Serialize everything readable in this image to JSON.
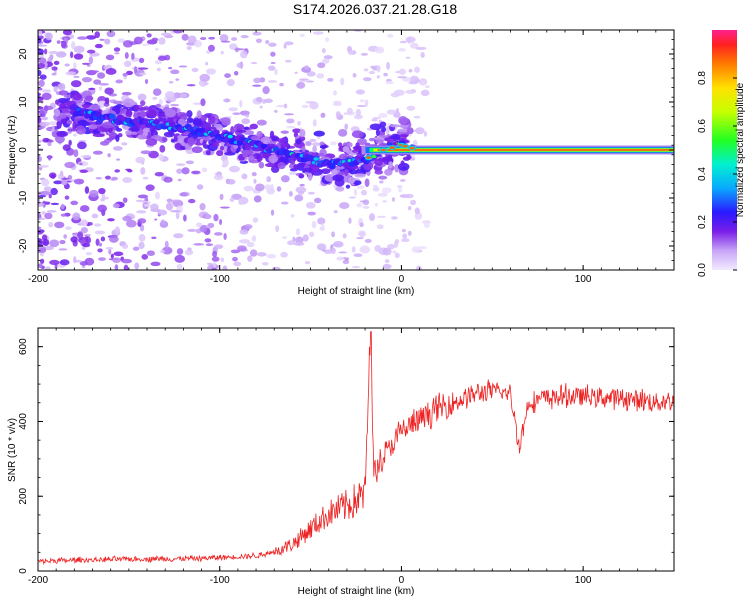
{
  "title": "S174.2026.037.21.28.G18",
  "colors": {
    "snr_line": "#ee2222",
    "axis": "#000000",
    "background": "#ffffff"
  },
  "chart_data": [
    {
      "type": "heatmap",
      "title": "S174.2026.037.21.28.G18",
      "xlabel": "Height of straight line (km)",
      "ylabel": "Frequency (Hz)",
      "xlim": [
        -200,
        150
      ],
      "ylim": [
        -25,
        25
      ],
      "xticks": [
        -200,
        -100,
        0,
        100
      ],
      "xtick_labels": [
        "-200",
        "-100",
        "0",
        "100"
      ],
      "yticks": [
        -20,
        -10,
        0,
        10,
        20
      ],
      "ytick_labels": [
        "-20",
        "-10",
        "0",
        "10",
        "20"
      ],
      "ridge": {
        "description": "main spectral ridge frequency vs height",
        "x": [
          -180,
          -160,
          -140,
          -120,
          -100,
          -80,
          -60,
          -40,
          -20,
          -10,
          0,
          10,
          50,
          100,
          150
        ],
        "y": [
          8,
          6.5,
          5.5,
          4.5,
          3,
          1,
          -1,
          -3,
          -2,
          0,
          1,
          0,
          0,
          0,
          0
        ],
        "peak_amplitude": [
          0.3,
          0.35,
          0.35,
          0.35,
          0.4,
          0.35,
          0.45,
          0.3,
          0.45,
          0.7,
          0.8,
          0.95,
          0.95,
          0.95,
          0.95
        ]
      },
      "colorbar": {
        "label": "Normalized spectral amplitude",
        "range": [
          0,
          1
        ],
        "ticks": [
          0.0,
          0.2,
          0.4,
          0.6,
          0.8
        ],
        "tick_labels": [
          "0.0",
          "0.2",
          "0.4",
          "0.6",
          "0.8"
        ]
      }
    },
    {
      "type": "line",
      "xlabel": "Height of straight line (km)",
      "ylabel": "SNR (10 * v/v)",
      "xlim": [
        -200,
        150
      ],
      "ylim": [
        0,
        650
      ],
      "xticks": [
        -200,
        -100,
        0,
        100
      ],
      "xtick_labels": [
        "-200",
        "-100",
        "0",
        "100"
      ],
      "yticks": [
        0,
        200,
        400,
        600
      ],
      "ytick_labels": [
        "0",
        "200",
        "400",
        "600"
      ],
      "series": [
        {
          "name": "SNR",
          "x": [
            -200,
            -180,
            -160,
            -140,
            -120,
            -100,
            -90,
            -80,
            -70,
            -60,
            -50,
            -40,
            -30,
            -20,
            -17,
            -15,
            -10,
            0,
            10,
            20,
            30,
            40,
            50,
            60,
            65,
            70,
            80,
            90,
            100,
            110,
            120,
            130,
            140,
            150
          ],
          "y": [
            25,
            28,
            30,
            32,
            32,
            35,
            38,
            40,
            50,
            70,
            110,
            150,
            170,
            200,
            640,
            260,
            300,
            370,
            400,
            430,
            450,
            470,
            480,
            470,
            330,
            450,
            460,
            465,
            465,
            462,
            460,
            455,
            450,
            450
          ]
        }
      ]
    }
  ]
}
